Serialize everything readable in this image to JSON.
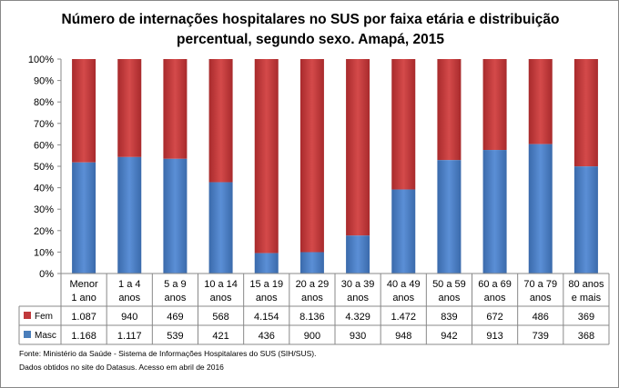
{
  "chart_data": {
    "type": "bar",
    "stacked": "percent",
    "title": "Número de internações hospitalares no SUS por faixa etária e distribuição percentual, segundo sexo. Amapá, 2015",
    "categories": [
      [
        "Menor",
        "1 ano"
      ],
      [
        "1 a 4",
        "anos"
      ],
      [
        "5 a 9",
        "anos"
      ],
      [
        "10 a 14",
        "anos"
      ],
      [
        "15 a 19",
        "anos"
      ],
      [
        "20 a 29",
        "anos"
      ],
      [
        "30 a 39",
        "anos"
      ],
      [
        "40 a 49",
        "anos"
      ],
      [
        "50 a 59",
        "anos"
      ],
      [
        "60 a 69",
        "anos"
      ],
      [
        "70 a 79",
        "anos"
      ],
      [
        "80 anos",
        "e mais"
      ]
    ],
    "series": [
      {
        "name": "Masc",
        "color": "#4a7ebb",
        "values": [
          1168,
          1117,
          539,
          421,
          436,
          900,
          930,
          948,
          942,
          913,
          739,
          368
        ],
        "labels": [
          "1.168",
          "1.117",
          "539",
          "421",
          "436",
          "900",
          "930",
          "948",
          "942",
          "913",
          "739",
          "368"
        ]
      },
      {
        "name": "Fem",
        "color": "#c0393b",
        "values": [
          1087,
          940,
          469,
          568,
          4154,
          8136,
          4329,
          1472,
          839,
          672,
          486,
          369
        ],
        "labels": [
          "1.087",
          "940",
          "469",
          "568",
          "4.154",
          "8.136",
          "4.329",
          "1.472",
          "839",
          "672",
          "486",
          "369"
        ]
      }
    ],
    "yticks": [
      "0%",
      "10%",
      "20%",
      "30%",
      "40%",
      "50%",
      "60%",
      "70%",
      "80%",
      "90%",
      "100%"
    ],
    "ylim": [
      0,
      100
    ],
    "grid": false,
    "legend": "data-table"
  },
  "footnotes": [
    "Fonte: Ministério da Saúde - Sistema de Informações Hospitalares do SUS (SIH/SUS).",
    "Dados obtidos no site do Datasus. Acesso em abril de 2016"
  ]
}
